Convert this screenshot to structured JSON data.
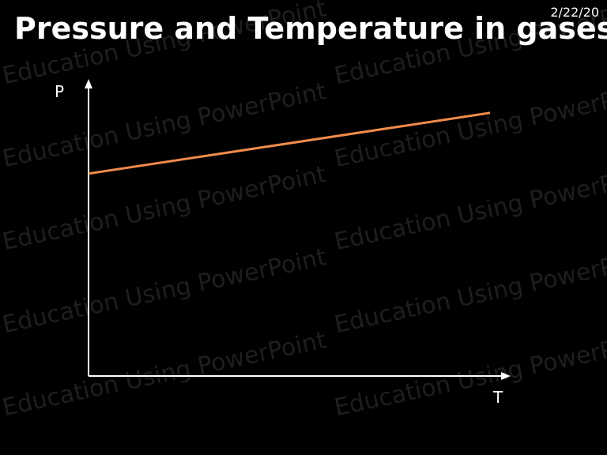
{
  "slide": {
    "title": "Pressure and Temperature in gases",
    "date": "2/22/20",
    "watermark": "Education Using PowerPoint"
  },
  "chart_data": {
    "type": "line",
    "title": "",
    "xlabel": "T",
    "ylabel": "P",
    "xlim": [
      0,
      10
    ],
    "ylim": [
      0,
      10
    ],
    "grid": false,
    "series": [
      {
        "x": [
          0,
          10
        ],
        "y": [
          7.0,
          9.1
        ]
      }
    ],
    "colors": {
      "line": "#f08a4b",
      "axis": "#ffffff",
      "background": "#000000"
    }
  }
}
